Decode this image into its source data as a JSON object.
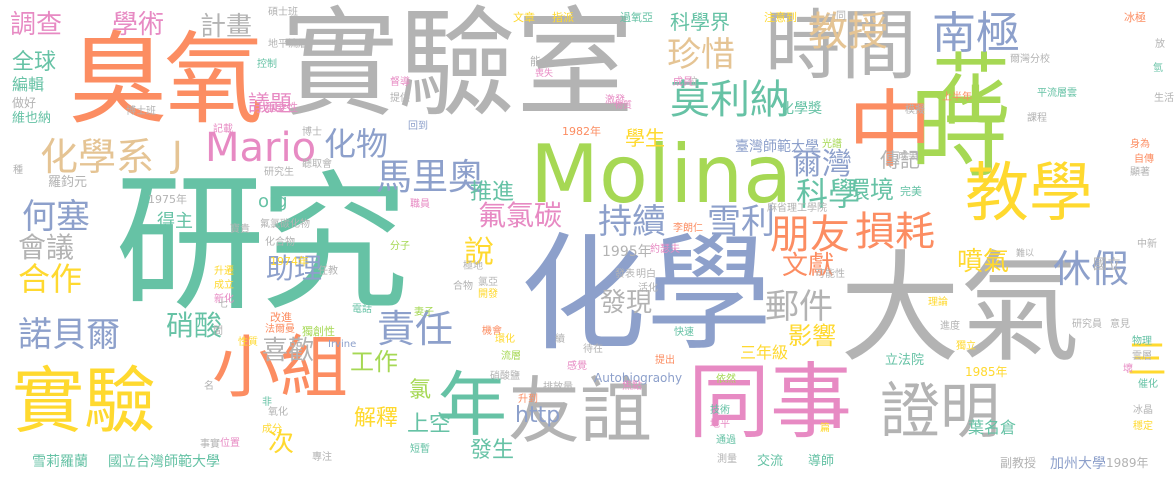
{
  "colors": {
    "green": "#66c2a5",
    "orange": "#fc8d62",
    "blue": "#8da0cb",
    "pink": "#e78ac3",
    "lime": "#a6d854",
    "yellow": "#ffd92f",
    "tan": "#e5c494",
    "gray": "#b3b3b3"
  },
  "words": [
    {
      "text": "研究",
      "color": "green"
    },
    {
      "text": "化學",
      "color": "blue"
    },
    {
      "text": "實驗室",
      "color": "gray"
    },
    {
      "text": "大氣",
      "color": "gray"
    },
    {
      "text": "Molina",
      "color": "lime"
    },
    {
      "text": "臭氧",
      "color": "orange"
    },
    {
      "text": "時間",
      "color": "gray"
    },
    {
      "text": "時",
      "color": "lime"
    },
    {
      "text": "中",
      "color": "orange"
    },
    {
      "text": "教學",
      "color": "yellow"
    },
    {
      "text": "同事",
      "color": "pink"
    },
    {
      "text": "友誼",
      "color": "gray"
    },
    {
      "text": "小組",
      "color": "orange"
    },
    {
      "text": "實驗",
      "color": "yellow"
    },
    {
      "text": "證明",
      "color": "gray"
    },
    {
      "text": "年",
      "color": "green"
    },
    {
      "text": "花",
      "color": "lime"
    },
    {
      "text": "南極",
      "color": "blue"
    },
    {
      "text": "教授",
      "color": "tan"
    },
    {
      "text": "朋友",
      "color": "orange"
    },
    {
      "text": "損耗",
      "color": "orange"
    },
    {
      "text": "莫利納",
      "color": "green"
    },
    {
      "text": "珍惜",
      "color": "tan"
    },
    {
      "text": "Mario",
      "color": "pink"
    },
    {
      "text": "化學系",
      "color": "tan"
    },
    {
      "text": "J",
      "color": "tan"
    },
    {
      "text": "化物",
      "color": "blue"
    },
    {
      "text": "馬里奧",
      "color": "blue"
    },
    {
      "text": "諾貝爾",
      "color": "blue"
    },
    {
      "text": "合作",
      "color": "yellow"
    },
    {
      "text": "責任",
      "color": "blue"
    },
    {
      "text": "持續",
      "color": "blue"
    },
    {
      "text": "雪利",
      "color": "blue"
    },
    {
      "text": "休假",
      "color": "blue"
    },
    {
      "text": "郵件",
      "color": "gray"
    },
    {
      "text": "噴氣",
      "color": "yellow"
    },
    {
      "text": "氟氯碳",
      "color": "pink"
    },
    {
      "text": "爾灣",
      "color": "blue"
    },
    {
      "text": "科學",
      "color": "green"
    },
    {
      "text": "何塞",
      "color": "blue"
    },
    {
      "text": "會議",
      "color": "gray"
    },
    {
      "text": "調查",
      "color": "pink"
    },
    {
      "text": "學術",
      "color": "pink"
    },
    {
      "text": "計畫",
      "color": "gray"
    },
    {
      "text": "全球",
      "color": "green"
    },
    {
      "text": "議題",
      "color": "pink"
    },
    {
      "text": "說",
      "color": "yellow"
    },
    {
      "text": "推進",
      "color": "green"
    },
    {
      "text": "助理",
      "color": "blue"
    },
    {
      "text": "硝酸",
      "color": "green"
    },
    {
      "text": "喜歡",
      "color": "gray"
    },
    {
      "text": "工作",
      "color": "lime"
    },
    {
      "text": "發現",
      "color": "gray"
    },
    {
      "text": "文獻",
      "color": "orange"
    },
    {
      "text": "影響",
      "color": "yellow"
    },
    {
      "text": "環境",
      "color": "green"
    },
    {
      "text": "傳記",
      "color": "gray"
    },
    {
      "text": "三",
      "color": "yellow"
    },
    {
      "text": "解釋",
      "color": "yellow"
    },
    {
      "text": "上空",
      "color": "green"
    },
    {
      "text": "發生",
      "color": "green"
    },
    {
      "text": "http",
      "color": "blue"
    },
    {
      "text": "次",
      "color": "yellow"
    },
    {
      "text": "科學界",
      "color": "green"
    },
    {
      "text": "學生",
      "color": "yellow"
    },
    {
      "text": "化學獎",
      "color": "green"
    },
    {
      "text": "臺灣師範大學",
      "color": "blue"
    },
    {
      "text": "葉名倉",
      "color": "green"
    },
    {
      "text": "三年級",
      "color": "yellow"
    },
    {
      "text": "org",
      "color": "green"
    },
    {
      "text": "1995年",
      "color": "gray"
    },
    {
      "text": "氯",
      "color": "lime"
    },
    {
      "text": "羅鈞元",
      "color": "gray"
    },
    {
      "text": "雪莉羅蘭",
      "color": "green"
    },
    {
      "text": "國立台灣師範大學",
      "color": "green"
    },
    {
      "text": "國立",
      "color": "gray"
    },
    {
      "text": "加州大學",
      "color": "blue"
    },
    {
      "text": "導師",
      "color": "green"
    },
    {
      "text": "交流",
      "color": "green"
    },
    {
      "text": "立法院",
      "color": "green"
    },
    {
      "text": "副教授",
      "color": "gray"
    },
    {
      "text": "1989年",
      "color": "gray"
    },
    {
      "text": "編輯",
      "color": "green"
    },
    {
      "text": "維也納",
      "color": "green"
    },
    {
      "text": "做好",
      "color": "gray"
    },
    {
      "text": "得主",
      "color": "green"
    },
    {
      "text": "1975年",
      "color": "gray"
    },
    {
      "text": "1974年",
      "color": "yellow"
    },
    {
      "text": "1982年",
      "color": "orange"
    },
    {
      "text": "1985年",
      "color": "yellow"
    },
    {
      "text": "Autobiograohy",
      "color": "blue"
    },
    {
      "text": "Irvine",
      "color": "blue"
    },
    {
      "text": "碩士班",
      "color": "gray"
    },
    {
      "text": "博士班",
      "color": "gray"
    },
    {
      "text": "文章",
      "color": "yellow"
    },
    {
      "text": "指派",
      "color": "yellow"
    },
    {
      "text": "過氧亞",
      "color": "green"
    },
    {
      "text": "注意到",
      "color": "yellow"
    },
    {
      "text": "一同",
      "color": "gray"
    },
    {
      "text": "冰極",
      "color": "orange"
    },
    {
      "text": "爾灣分校",
      "color": "gray"
    },
    {
      "text": "控制",
      "color": "green"
    },
    {
      "text": "提供",
      "color": "gray"
    },
    {
      "text": "記載",
      "color": "pink"
    },
    {
      "text": "重要性",
      "color": "pink"
    },
    {
      "text": "回到",
      "color": "blue"
    },
    {
      "text": "博士",
      "color": "gray"
    },
    {
      "text": "聽取會",
      "color": "gray"
    },
    {
      "text": "研究生",
      "color": "gray"
    },
    {
      "text": "成果",
      "color": "gray"
    },
    {
      "text": "光譜",
      "color": "lime"
    },
    {
      "text": "身為",
      "color": "orange"
    },
    {
      "text": "自傳",
      "color": "orange"
    },
    {
      "text": "完美",
      "color": "green"
    },
    {
      "text": "可能性",
      "color": "gray"
    },
    {
      "text": "理論",
      "color": "yellow"
    },
    {
      "text": "進度",
      "color": "gray"
    },
    {
      "text": "研究員",
      "color": "gray"
    },
    {
      "text": "意見",
      "color": "gray"
    },
    {
      "text": "物理",
      "color": "green"
    },
    {
      "text": "獨立",
      "color": "yellow"
    },
    {
      "text": "雲層",
      "color": "gray"
    },
    {
      "text": "催化",
      "color": "green"
    },
    {
      "text": "冰晶",
      "color": "gray"
    },
    {
      "text": "穩定",
      "color": "yellow"
    },
    {
      "text": "技術",
      "color": "green"
    },
    {
      "text": "地平",
      "color": "pink"
    },
    {
      "text": "通過",
      "color": "green"
    },
    {
      "text": "測量",
      "color": "gray"
    },
    {
      "text": "快速",
      "color": "green"
    },
    {
      "text": "待在",
      "color": "gray"
    },
    {
      "text": "提出",
      "color": "orange"
    },
    {
      "text": "排放量",
      "color": "gray"
    },
    {
      "text": "依然",
      "color": "lime"
    },
    {
      "text": "硝酸鹽",
      "color": "gray"
    },
    {
      "text": "機會",
      "color": "orange"
    },
    {
      "text": "流層",
      "color": "lime"
    },
    {
      "text": "環化",
      "color": "yellow"
    },
    {
      "text": "感覺",
      "color": "pink"
    },
    {
      "text": "升到",
      "color": "orange"
    },
    {
      "text": "短暫",
      "color": "green"
    },
    {
      "text": "專注",
      "color": "gray"
    },
    {
      "text": "氧化",
      "color": "gray"
    },
    {
      "text": "成分",
      "color": "yellow"
    },
    {
      "text": "位置",
      "color": "pink"
    },
    {
      "text": "事實",
      "color": "gray"
    },
    {
      "text": "改進",
      "color": "orange"
    },
    {
      "text": "獨創性",
      "color": "lime"
    },
    {
      "text": "法爾曼",
      "color": "orange"
    },
    {
      "text": "妻子",
      "color": "lime"
    },
    {
      "text": "電話",
      "color": "green"
    },
    {
      "text": "性質",
      "color": "yellow"
    },
    {
      "text": "新化",
      "color": "pink"
    },
    {
      "text": "成立",
      "color": "yellow"
    },
    {
      "text": "升遷",
      "color": "yellow"
    },
    {
      "text": "化合物",
      "color": "gray"
    },
    {
      "text": "氟氯碳化物",
      "color": "gray"
    },
    {
      "text": "分子",
      "color": "lime"
    },
    {
      "text": "明白",
      "color": "gray"
    },
    {
      "text": "活化",
      "color": "gray"
    },
    {
      "text": "發表",
      "color": "gray"
    },
    {
      "text": "約瑟夫",
      "color": "pink"
    },
    {
      "text": "職員",
      "color": "pink"
    },
    {
      "text": "李朗仁",
      "color": "orange"
    },
    {
      "text": "麻省理工學院",
      "color": "gray"
    },
    {
      "text": "難以",
      "color": "gray"
    },
    {
      "text": "中新",
      "color": "gray"
    },
    {
      "text": "上半年",
      "color": "orange"
    },
    {
      "text": "模擬",
      "color": "gray"
    },
    {
      "text": "課程",
      "color": "gray"
    },
    {
      "text": "平流層雲",
      "color": "green"
    },
    {
      "text": "能力",
      "color": "gray"
    },
    {
      "text": "喪失",
      "color": "pink"
    },
    {
      "text": "激發",
      "color": "pink"
    },
    {
      "text": "物質",
      "color": "pink"
    },
    {
      "text": "督導",
      "color": "pink"
    },
    {
      "text": "地平流層",
      "color": "gray"
    },
    {
      "text": "位",
      "color": "gray"
    },
    {
      "text": "成員",
      "color": "pink"
    },
    {
      "text": "開發",
      "color": "yellow"
    },
    {
      "text": "氯亞",
      "color": "gray"
    },
    {
      "text": "合物",
      "color": "gray"
    },
    {
      "text": "極地",
      "color": "gray"
    },
    {
      "text": "焦點",
      "color": "pink"
    },
    {
      "text": "續",
      "color": "gray"
    },
    {
      "text": "種",
      "color": "gray"
    },
    {
      "text": "寶貴",
      "color": "gray"
    },
    {
      "text": "任教",
      "color": "gray"
    },
    {
      "text": "七",
      "color": "gray"
    },
    {
      "text": "名",
      "color": "gray"
    },
    {
      "text": "間",
      "color": "gray"
    },
    {
      "text": "非",
      "color": "green"
    },
    {
      "text": "氫",
      "color": "green"
    },
    {
      "text": "放",
      "color": "gray"
    },
    {
      "text": "篇",
      "color": "yellow"
    },
    {
      "text": "壞",
      "color": "pink"
    },
    {
      "text": "生活",
      "color": "gray"
    },
    {
      "text": "顯著",
      "color": "gray"
    }
  ]
}
